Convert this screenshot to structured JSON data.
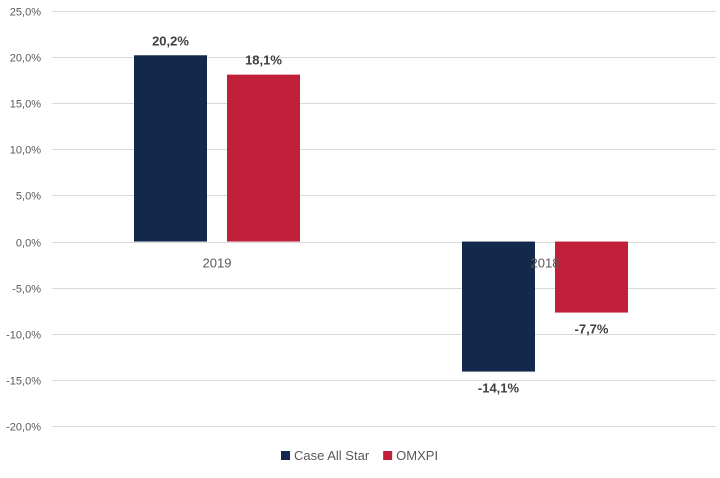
{
  "chart_data": {
    "type": "bar",
    "categories": [
      "2019",
      "2018"
    ],
    "series": [
      {
        "name": "Case All Star",
        "color": "#13294b",
        "values": [
          20.2,
          -14.1
        ],
        "labels": [
          "20,2%",
          "-14,1%"
        ]
      },
      {
        "name": "OMXPI",
        "color": "#c0203a",
        "values": [
          18.1,
          -7.7
        ],
        "labels": [
          "18,1%",
          "-7,7%"
        ]
      }
    ],
    "ylim": [
      -20,
      25
    ],
    "yticks": [
      25,
      20,
      15,
      10,
      5,
      0,
      -5,
      -10,
      -15,
      -20
    ],
    "ytick_labels": [
      "25,0%",
      "20,0%",
      "15,0%",
      "10,0%",
      "5,0%",
      "0,0%",
      "-5,0%",
      "-10,0%",
      "-15,0%",
      "-20,0%"
    ],
    "grid": true,
    "legend_position": "bottom"
  }
}
